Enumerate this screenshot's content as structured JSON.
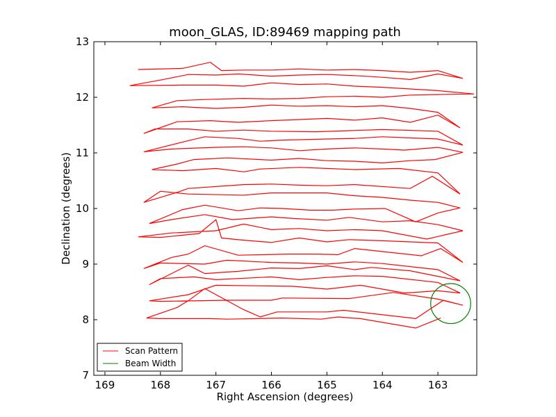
{
  "chart_data": {
    "type": "line",
    "title": "moon_GLAS, ID:89469 mapping path",
    "xlabel": "Right Ascension (degrees)",
    "ylabel": "Declination (degrees)",
    "xlim": [
      169.2,
      162.3
    ],
    "ylim": [
      7,
      13
    ],
    "x_inverted": true,
    "xticks": [
      169,
      168,
      167,
      166,
      165,
      164,
      163
    ],
    "yticks": [
      7,
      8,
      9,
      10,
      11,
      12,
      13
    ],
    "grid": false,
    "legend_position": "lower-left",
    "series": [
      {
        "name": "Scan Pattern",
        "color": "#ff0000",
        "points": [
          [
            162.95,
            8.03
          ],
          [
            163.4,
            7.85
          ],
          [
            164.4,
            8.02
          ],
          [
            164.56,
            8.03
          ],
          [
            164.8,
            8.05
          ],
          [
            165.1,
            8.01
          ],
          [
            165.8,
            8.03
          ],
          [
            166.8,
            8.01
          ],
          [
            167.1,
            8.02
          ],
          [
            168.0,
            8.02
          ],
          [
            168.25,
            8.03
          ],
          [
            167.7,
            8.22
          ],
          [
            167.5,
            8.34
          ],
          [
            167.2,
            8.56
          ],
          [
            166.5,
            8.18
          ],
          [
            166.2,
            8.05
          ],
          [
            165.9,
            8.14
          ],
          [
            165.0,
            8.14
          ],
          [
            164.7,
            8.17
          ],
          [
            163.4,
            8.02
          ],
          [
            162.9,
            8.35
          ],
          [
            162.55,
            8.26
          ],
          [
            163.0,
            8.37
          ],
          [
            163.8,
            8.49
          ],
          [
            164.6,
            8.38
          ],
          [
            165.8,
            8.39
          ],
          [
            166.0,
            8.35
          ],
          [
            166.8,
            8.35
          ],
          [
            168.0,
            8.33
          ],
          [
            168.2,
            8.34
          ],
          [
            167.5,
            8.45
          ],
          [
            167.0,
            8.62
          ],
          [
            165.6,
            8.6
          ],
          [
            165.0,
            8.55
          ],
          [
            164.4,
            8.62
          ],
          [
            163.6,
            8.48
          ],
          [
            163.0,
            8.52
          ],
          [
            162.6,
            8.48
          ],
          [
            163.0,
            8.67
          ],
          [
            164.0,
            8.78
          ],
          [
            164.5,
            8.79
          ],
          [
            165.0,
            8.76
          ],
          [
            165.5,
            8.72
          ],
          [
            166.0,
            8.77
          ],
          [
            167.0,
            8.72
          ],
          [
            167.4,
            8.77
          ],
          [
            168.0,
            8.74
          ],
          [
            168.2,
            8.63
          ],
          [
            167.7,
            8.88
          ],
          [
            167.5,
            8.98
          ],
          [
            167.2,
            8.83
          ],
          [
            166.6,
            8.87
          ],
          [
            166.0,
            8.93
          ],
          [
            165.5,
            8.92
          ],
          [
            165.0,
            8.97
          ],
          [
            164.5,
            8.9
          ],
          [
            164.2,
            8.94
          ],
          [
            163.5,
            8.88
          ],
          [
            163.0,
            8.78
          ],
          [
            162.6,
            8.7
          ],
          [
            163.0,
            8.9
          ],
          [
            164.0,
            9.01
          ],
          [
            164.5,
            9.04
          ],
          [
            165.0,
            9.0
          ],
          [
            165.5,
            9.02
          ],
          [
            166.0,
            9.03
          ],
          [
            166.8,
            9.07
          ],
          [
            167.2,
            9.0
          ],
          [
            168.0,
            9.02
          ],
          [
            168.3,
            8.92
          ],
          [
            167.8,
            9.12
          ],
          [
            167.5,
            9.18
          ],
          [
            167.2,
            9.33
          ],
          [
            166.6,
            9.16
          ],
          [
            166.1,
            9.17
          ],
          [
            165.7,
            9.18
          ],
          [
            165.2,
            9.18
          ],
          [
            164.8,
            9.17
          ],
          [
            164.5,
            9.28
          ],
          [
            163.3,
            9.15
          ],
          [
            162.95,
            9.28
          ],
          [
            162.55,
            9.03
          ],
          [
            163.0,
            9.38
          ],
          [
            164.0,
            9.42
          ],
          [
            164.6,
            9.44
          ],
          [
            165.0,
            9.4
          ],
          [
            165.5,
            9.47
          ],
          [
            166.0,
            9.39
          ],
          [
            166.5,
            9.43
          ],
          [
            166.9,
            9.47
          ],
          [
            167.0,
            9.8
          ],
          [
            167.3,
            9.55
          ],
          [
            168.0,
            9.48
          ],
          [
            168.4,
            9.49
          ],
          [
            167.8,
            9.56
          ],
          [
            167.0,
            9.6
          ],
          [
            166.5,
            9.72
          ],
          [
            166.0,
            9.62
          ],
          [
            165.5,
            9.64
          ],
          [
            165.0,
            9.6
          ],
          [
            164.5,
            9.62
          ],
          [
            164.0,
            9.6
          ],
          [
            163.2,
            9.45
          ],
          [
            162.55,
            9.6
          ],
          [
            163.0,
            9.71
          ],
          [
            163.5,
            9.78
          ],
          [
            164.0,
            9.76
          ],
          [
            164.6,
            9.84
          ],
          [
            165.0,
            9.79
          ],
          [
            165.6,
            9.82
          ],
          [
            166.0,
            9.85
          ],
          [
            166.7,
            9.8
          ],
          [
            167.2,
            9.89
          ],
          [
            167.8,
            9.8
          ],
          [
            168.2,
            9.73
          ],
          [
            167.6,
            9.98
          ],
          [
            167.2,
            10.06
          ],
          [
            166.6,
            9.96
          ],
          [
            166.2,
            10.01
          ],
          [
            165.8,
            10.0
          ],
          [
            165.3,
            9.97
          ],
          [
            164.9,
            9.97
          ],
          [
            164.5,
            9.99
          ],
          [
            163.95,
            10.0
          ],
          [
            163.4,
            9.76
          ],
          [
            163.0,
            9.92
          ],
          [
            162.6,
            10.01
          ],
          [
            163.0,
            10.11
          ],
          [
            163.5,
            10.15
          ],
          [
            164.0,
            10.2
          ],
          [
            164.5,
            10.23
          ],
          [
            165.0,
            10.28
          ],
          [
            166.0,
            10.28
          ],
          [
            166.5,
            10.24
          ],
          [
            167.5,
            10.26
          ],
          [
            168.0,
            10.31
          ],
          [
            168.3,
            10.11
          ],
          [
            167.7,
            10.29
          ],
          [
            167.5,
            10.36
          ],
          [
            166.5,
            10.43
          ],
          [
            166.0,
            10.44
          ],
          [
            165.5,
            10.42
          ],
          [
            165.0,
            10.41
          ],
          [
            164.5,
            10.43
          ],
          [
            163.5,
            10.36
          ],
          [
            163.1,
            10.58
          ],
          [
            162.6,
            10.26
          ],
          [
            163.0,
            10.64
          ],
          [
            163.7,
            10.72
          ],
          [
            164.5,
            10.7
          ],
          [
            165.0,
            10.72
          ],
          [
            165.5,
            10.74
          ],
          [
            166.2,
            10.71
          ],
          [
            166.5,
            10.66
          ],
          [
            167.0,
            10.72
          ],
          [
            167.6,
            10.68
          ],
          [
            168.15,
            10.7
          ],
          [
            167.7,
            10.8
          ],
          [
            167.4,
            10.88
          ],
          [
            166.8,
            10.91
          ],
          [
            166.0,
            10.87
          ],
          [
            165.5,
            10.9
          ],
          [
            165.0,
            10.86
          ],
          [
            164.5,
            10.85
          ],
          [
            164.0,
            10.82
          ],
          [
            163.5,
            10.86
          ],
          [
            163.05,
            10.88
          ],
          [
            162.55,
            11.01
          ],
          [
            163.0,
            11.1
          ],
          [
            163.6,
            11.05
          ],
          [
            164.0,
            11.07
          ],
          [
            164.5,
            11.09
          ],
          [
            165.0,
            11.07
          ],
          [
            165.5,
            11.04
          ],
          [
            166.0,
            11.09
          ],
          [
            166.5,
            11.11
          ],
          [
            167.0,
            11.1
          ],
          [
            167.8,
            11.07
          ],
          [
            168.3,
            11.02
          ],
          [
            167.5,
            11.22
          ],
          [
            167.2,
            11.29
          ],
          [
            166.6,
            11.26
          ],
          [
            166.2,
            11.21
          ],
          [
            165.8,
            11.23
          ],
          [
            165.0,
            11.25
          ],
          [
            164.5,
            11.26
          ],
          [
            164.0,
            11.29
          ],
          [
            163.5,
            11.27
          ],
          [
            163.0,
            11.25
          ],
          [
            162.55,
            11.14
          ],
          [
            163.0,
            11.39
          ],
          [
            164.0,
            11.42
          ],
          [
            164.6,
            11.4
          ],
          [
            165.2,
            11.38
          ],
          [
            166.0,
            11.39
          ],
          [
            166.5,
            11.41
          ],
          [
            167.0,
            11.39
          ],
          [
            167.5,
            11.43
          ],
          [
            168.1,
            11.43
          ],
          [
            168.3,
            11.35
          ],
          [
            167.7,
            11.56
          ],
          [
            167.1,
            11.58
          ],
          [
            166.6,
            11.55
          ],
          [
            166.0,
            11.58
          ],
          [
            165.5,
            11.6
          ],
          [
            165.0,
            11.62
          ],
          [
            164.5,
            11.59
          ],
          [
            164.0,
            11.63
          ],
          [
            163.5,
            11.55
          ],
          [
            163.0,
            11.68
          ],
          [
            162.6,
            11.45
          ],
          [
            163.0,
            11.73
          ],
          [
            163.5,
            11.8
          ],
          [
            164.0,
            11.85
          ],
          [
            164.5,
            11.83
          ],
          [
            165.0,
            11.85
          ],
          [
            165.5,
            11.84
          ],
          [
            166.0,
            11.86
          ],
          [
            166.5,
            11.82
          ],
          [
            167.0,
            11.8
          ],
          [
            167.6,
            11.83
          ],
          [
            168.15,
            11.81
          ],
          [
            167.7,
            11.94
          ],
          [
            167.2,
            11.96
          ],
          [
            166.5,
            11.98
          ],
          [
            166.0,
            11.97
          ],
          [
            165.5,
            11.98
          ],
          [
            165.0,
            12.01
          ],
          [
            164.5,
            12.02
          ],
          [
            164.0,
            12.0
          ],
          [
            163.5,
            12.04
          ],
          [
            163.0,
            12.05
          ],
          [
            162.35,
            12.06
          ],
          [
            163.0,
            12.12
          ],
          [
            163.5,
            12.15
          ],
          [
            164.0,
            12.18
          ],
          [
            164.5,
            12.2
          ],
          [
            165.0,
            12.24
          ],
          [
            165.5,
            12.23
          ],
          [
            166.0,
            12.26
          ],
          [
            166.5,
            12.2
          ],
          [
            167.0,
            12.22
          ],
          [
            167.6,
            12.22
          ],
          [
            168.55,
            12.21
          ],
          [
            168.0,
            12.31
          ],
          [
            167.5,
            12.41
          ],
          [
            167.0,
            12.4
          ],
          [
            166.6,
            12.42
          ],
          [
            166.0,
            12.38
          ],
          [
            165.5,
            12.4
          ],
          [
            165.0,
            12.41
          ],
          [
            164.5,
            12.39
          ],
          [
            164.0,
            12.36
          ],
          [
            163.5,
            12.32
          ],
          [
            163.0,
            12.42
          ],
          [
            162.55,
            12.34
          ],
          [
            163.0,
            12.48
          ],
          [
            163.5,
            12.45
          ],
          [
            164.0,
            12.48
          ],
          [
            164.5,
            12.5
          ],
          [
            165.0,
            12.49
          ],
          [
            165.5,
            12.51
          ],
          [
            166.0,
            12.49
          ],
          [
            166.5,
            12.49
          ],
          [
            166.9,
            12.48
          ],
          [
            167.1,
            12.63
          ],
          [
            167.6,
            12.52
          ],
          [
            168.4,
            12.5
          ]
        ]
      },
      {
        "name": "Beam Width",
        "color": "#008000",
        "circle_center": [
          162.77,
          8.29
        ],
        "circle_radius": 0.36
      }
    ],
    "legend": [
      "Scan Pattern",
      "Beam Width"
    ]
  }
}
